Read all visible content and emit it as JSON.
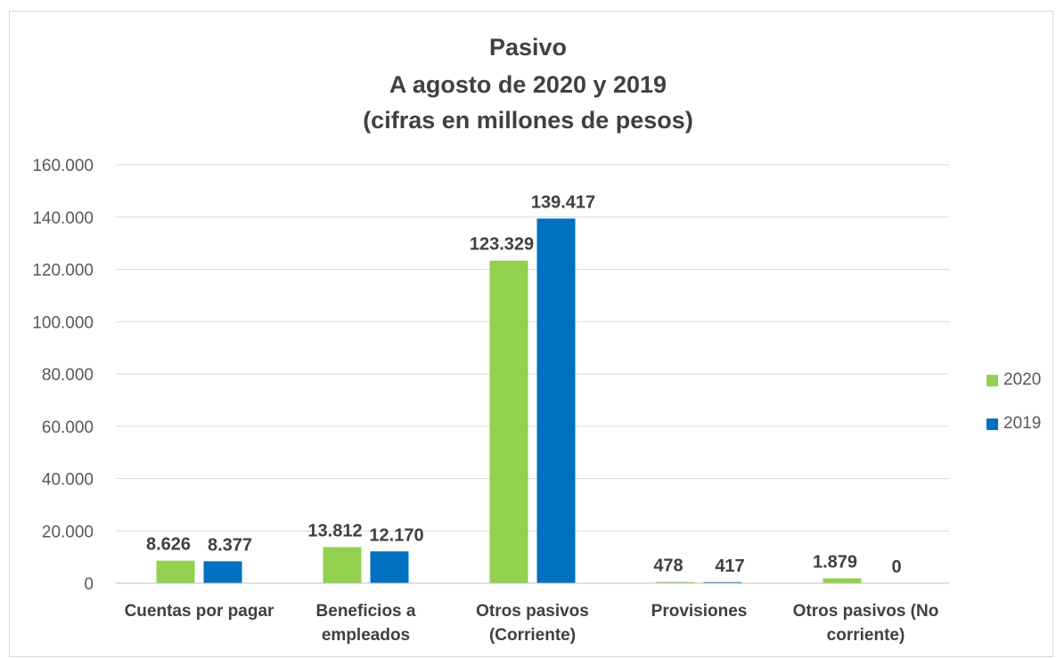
{
  "chart_data": {
    "type": "bar",
    "title_lines": [
      "Pasivo",
      "A agosto de 2020 y 2019",
      "(cifras en millones de pesos)"
    ],
    "categories": [
      [
        "Cuentas por pagar"
      ],
      [
        "Beneficios a",
        "empleados"
      ],
      [
        "Otros pasivos",
        "(Corriente)"
      ],
      [
        "Provisiones"
      ],
      [
        "Otros pasivos (No",
        "corriente)"
      ]
    ],
    "series": [
      {
        "name": "2020",
        "color": "#92d050",
        "values": [
          8626,
          13812,
          123329,
          478,
          1879
        ],
        "labels": [
          "8.626",
          "13.812",
          "123.329",
          "478",
          "1.879"
        ]
      },
      {
        "name": "2019",
        "color": "#0070c0",
        "values": [
          8377,
          12170,
          139417,
          417,
          0
        ],
        "labels": [
          "8.377",
          "12.170",
          "139.417",
          "417",
          "0"
        ]
      }
    ],
    "ylim": [
      0,
      160000
    ],
    "yticks": [
      0,
      20000,
      40000,
      60000,
      80000,
      100000,
      120000,
      140000,
      160000
    ],
    "ytick_labels": [
      "0",
      "20.000",
      "40.000",
      "60.000",
      "80.000",
      "100.000",
      "120.000",
      "140.000",
      "160.000"
    ],
    "grid": true,
    "legend_position": "right"
  }
}
